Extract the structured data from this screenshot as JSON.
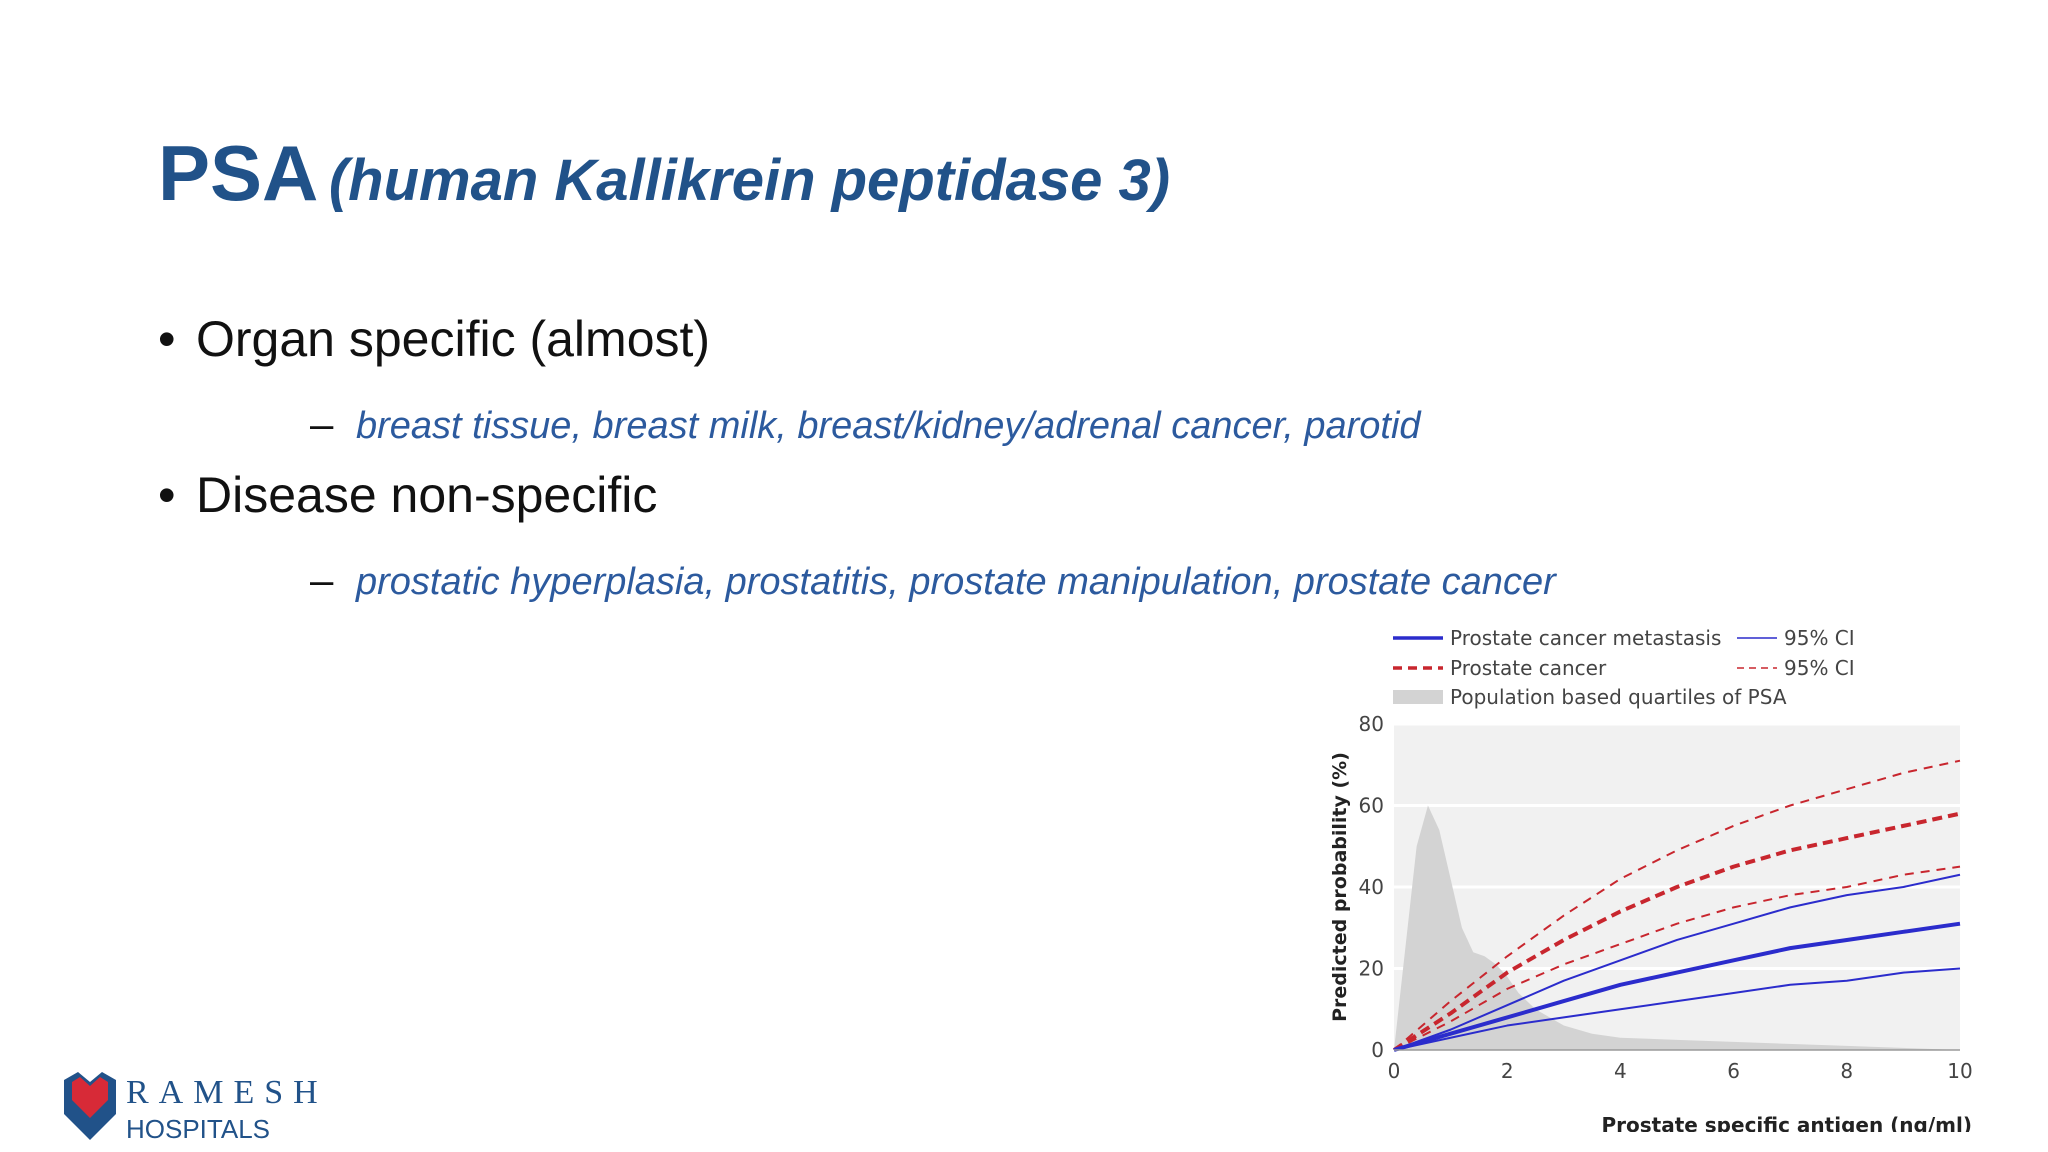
{
  "slide": {
    "title_main": "PSA",
    "title_sub": "(human Kallikrein peptidase 3)",
    "bullets": [
      {
        "text": "Organ specific (almost)",
        "sub": "breast tissue, breast milk, breast/kidney/adrenal cancer, parotid"
      },
      {
        "text": "Disease non-specific",
        "sub": "prostatic hyperplasia, prostatitis, prostate manipulation, prostate cancer"
      }
    ],
    "bullet_glyph": "•",
    "sub_glyph": "–"
  },
  "logo": {
    "word1": "RAMESH",
    "word2": "HOSPITALS",
    "colors": {
      "red": "#d72a37",
      "blue": "#215289"
    }
  },
  "chart_data": {
    "type": "line",
    "xlabel": "Prostate specific antigen (ng/ml)",
    "ylabel": "Predicted probability (%)",
    "xlim": [
      0,
      10
    ],
    "ylim": [
      0,
      80
    ],
    "xticks": [
      0,
      2,
      4,
      6,
      8,
      10
    ],
    "yticks": [
      0,
      20,
      40,
      60,
      80
    ],
    "grid": true,
    "legend_position": "top",
    "legend": {
      "metastasis": "Prostate cancer metastasis",
      "cancer": "Prostate cancer",
      "ci1": "95% CI",
      "ci2": "95% CI",
      "population": "Population based quartiles of PSA"
    },
    "series": [
      {
        "key": "cancer_upper",
        "style": "red-dashed-thin",
        "x": [
          0,
          1,
          2,
          3,
          4,
          5,
          6,
          7,
          8,
          9,
          10
        ],
        "y": [
          0,
          12,
          23,
          33,
          42,
          49,
          55,
          60,
          64,
          68,
          71
        ]
      },
      {
        "key": "cancer",
        "style": "red-dashed-bold",
        "x": [
          0,
          1,
          2,
          3,
          4,
          5,
          6,
          7,
          8,
          9,
          10
        ],
        "y": [
          0,
          9,
          19,
          27,
          34,
          40,
          45,
          49,
          52,
          55,
          58
        ]
      },
      {
        "key": "cancer_lower",
        "style": "red-dashed-thin",
        "x": [
          0,
          1,
          2,
          3,
          4,
          5,
          6,
          7,
          8,
          9,
          10
        ],
        "y": [
          0,
          7,
          15,
          21,
          26,
          31,
          35,
          38,
          40,
          43,
          45
        ]
      },
      {
        "key": "metastasis_upper",
        "style": "blue-solid-thin",
        "x": [
          0,
          1,
          2,
          3,
          4,
          5,
          6,
          7,
          8,
          9,
          10
        ],
        "y": [
          0,
          5,
          11,
          17,
          22,
          27,
          31,
          35,
          38,
          40,
          43
        ]
      },
      {
        "key": "metastasis",
        "style": "blue-solid-bold",
        "x": [
          0,
          1,
          2,
          3,
          4,
          5,
          6,
          7,
          8,
          9,
          10
        ],
        "y": [
          0,
          4,
          8,
          12,
          16,
          19,
          22,
          25,
          27,
          29,
          31
        ]
      },
      {
        "key": "metastasis_lower",
        "style": "blue-solid-thin",
        "x": [
          0,
          1,
          2,
          3,
          4,
          5,
          6,
          7,
          8,
          9,
          10
        ],
        "y": [
          0,
          3,
          6,
          8,
          10,
          12,
          14,
          16,
          17,
          19,
          20
        ]
      }
    ],
    "population_distribution": {
      "x": [
        0,
        0.2,
        0.4,
        0.6,
        0.8,
        1.0,
        1.2,
        1.4,
        1.6,
        1.8,
        2.0,
        2.2,
        2.5,
        3.0,
        3.5,
        4.0,
        5.0,
        6.0,
        8.0,
        10.0
      ],
      "y": [
        0,
        25,
        50,
        60,
        54,
        42,
        30,
        24,
        23,
        21,
        18,
        14,
        10,
        6,
        4,
        3,
        2.5,
        2,
        1,
        0
      ]
    },
    "colors": {
      "metastasis": "#2b2ccc",
      "cancer": "#c8262e",
      "population": "#d3d3d3",
      "plot_bg": "#f1f1f1"
    }
  }
}
